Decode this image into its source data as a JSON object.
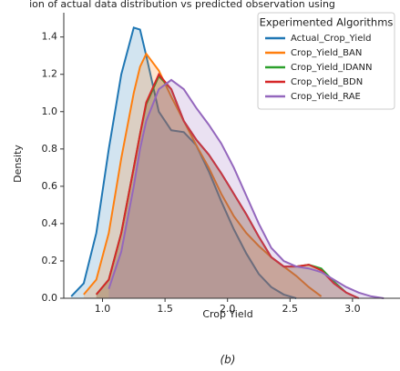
{
  "chart_data": {
    "type": "area",
    "title": "ion of actual data distribution vs predicted observation using",
    "x_label": "Crop Yield",
    "y_label": "Density",
    "caption": "(b)",
    "legend_title": "Experimented Algorithms",
    "legend_position": "upper right",
    "x": [
      0.75,
      0.85,
      0.95,
      1.05,
      1.15,
      1.25,
      1.3,
      1.35,
      1.45,
      1.55,
      1.65,
      1.75,
      1.85,
      1.95,
      2.05,
      2.15,
      2.25,
      2.35,
      2.45,
      2.55,
      2.65,
      2.75,
      2.85,
      2.95,
      3.05,
      3.15,
      3.25
    ],
    "series": [
      {
        "name": "Actual_Crop_Yield",
        "color": "#1f77b4",
        "values": [
          0.01,
          0.08,
          0.35,
          0.8,
          1.2,
          1.45,
          1.44,
          1.3,
          1.0,
          0.9,
          0.89,
          0.82,
          0.68,
          0.52,
          0.37,
          0.24,
          0.13,
          0.06,
          0.02,
          0.0,
          null,
          null,
          null,
          null,
          null,
          null,
          null
        ]
      },
      {
        "name": "Crop_Yield_BAN",
        "color": "#ff7f0e",
        "values": [
          null,
          0.02,
          0.1,
          0.35,
          0.75,
          1.1,
          1.24,
          1.31,
          1.22,
          1.08,
          0.95,
          0.82,
          0.7,
          0.56,
          0.44,
          0.35,
          0.28,
          0.22,
          0.17,
          0.12,
          0.06,
          0.01,
          null,
          null,
          null,
          null,
          null
        ]
      },
      {
        "name": "Crop_Yield_IDANN",
        "color": "#2ca02c",
        "values": [
          null,
          null,
          0.02,
          0.1,
          0.35,
          0.7,
          0.88,
          1.04,
          1.19,
          1.12,
          0.95,
          0.85,
          0.77,
          0.67,
          0.56,
          0.45,
          0.33,
          0.22,
          0.17,
          0.17,
          0.18,
          0.16,
          0.09,
          0.03,
          0.0,
          null,
          null
        ]
      },
      {
        "name": "Crop_Yield_BDN",
        "color": "#d62728",
        "values": [
          null,
          null,
          0.02,
          0.1,
          0.35,
          0.7,
          0.88,
          1.05,
          1.2,
          1.12,
          0.95,
          0.85,
          0.77,
          0.67,
          0.56,
          0.45,
          0.33,
          0.22,
          0.17,
          0.17,
          0.18,
          0.15,
          0.08,
          0.03,
          0.0,
          null,
          null
        ]
      },
      {
        "name": "Crop_Yield_RAE",
        "color": "#9467bd",
        "values": [
          null,
          null,
          null,
          0.05,
          0.25,
          0.6,
          0.8,
          0.95,
          1.12,
          1.17,
          1.12,
          1.02,
          0.93,
          0.83,
          0.7,
          0.55,
          0.4,
          0.27,
          0.2,
          0.17,
          0.16,
          0.14,
          0.1,
          0.06,
          0.03,
          0.01,
          0.0
        ]
      }
    ],
    "xlim": [
      0.69,
      3.38
    ],
    "ylim": [
      0,
      1.53
    ],
    "xticks": [
      {
        "value": 1,
        "label": "1.0"
      },
      1.5,
      {
        "value": 2,
        "label": "2.0"
      },
      2.5,
      {
        "value": 3,
        "label": "3.0"
      }
    ],
    "yticks": [
      {
        "value": 0,
        "label": "0.0"
      },
      0.2,
      0.4,
      0.6,
      0.8,
      {
        "value": 1,
        "label": "1.0"
      },
      1.2,
      1.4
    ],
    "fill_opacity": 0.2
  }
}
